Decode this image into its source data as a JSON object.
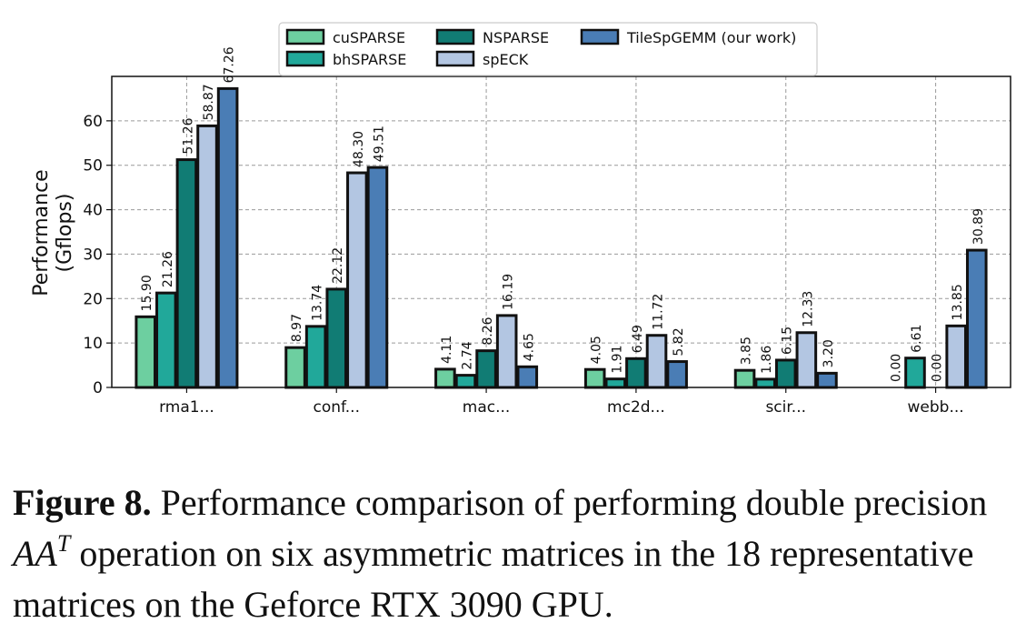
{
  "chart_data": {
    "type": "bar",
    "ylabel": "Performance\n(Gflops)",
    "xlabel": "",
    "ylim": [
      0,
      70
    ],
    "yticks": [
      0,
      10,
      20,
      30,
      40,
      50,
      60
    ],
    "grid": true,
    "legend_position": "top-center",
    "categories": [
      "rma1...",
      "conf...",
      "mac...",
      "mc2d...",
      "scir...",
      "webb..."
    ],
    "series": [
      {
        "name": "cuSPARSE",
        "color": "#6dcfa0",
        "values": [
          15.9,
          8.97,
          4.11,
          4.05,
          3.85,
          0.0
        ],
        "labels": [
          "15.90",
          "8.97",
          "4.11",
          "4.05",
          "3.85",
          "0.00"
        ]
      },
      {
        "name": "bhSPARSE",
        "color": "#21a89a",
        "values": [
          21.26,
          13.74,
          2.74,
          1.91,
          1.86,
          6.61
        ],
        "labels": [
          "21.26",
          "13.74",
          "2.74",
          "1.91",
          "1.86",
          "6.61"
        ]
      },
      {
        "name": "NSPARSE",
        "color": "#117c74",
        "values": [
          51.26,
          22.12,
          8.26,
          6.49,
          6.15,
          0.0
        ],
        "labels": [
          "51.26",
          "22.12",
          "8.26",
          "6.49",
          "6.15",
          "0.00"
        ]
      },
      {
        "name": "spECK",
        "color": "#b3c6e2",
        "values": [
          58.87,
          48.3,
          16.19,
          11.72,
          12.33,
          13.85
        ],
        "labels": [
          "58.87",
          "48.30",
          "16.19",
          "11.72",
          "12.33",
          "13.85"
        ]
      },
      {
        "name": "TileSpGEMM (our work)",
        "color": "#4a7db5",
        "values": [
          67.26,
          49.51,
          4.65,
          5.82,
          3.2,
          30.89
        ],
        "labels": [
          "67.26",
          "49.51",
          "4.65",
          "5.82",
          "3.20",
          "30.89"
        ]
      }
    ]
  },
  "caption": {
    "label": "Figure 8.",
    "text_before": " Performance comparison of performing double precision ",
    "math_base": "AA",
    "math_sup": "T",
    "text_after": " operation on six asymmetric matrices in the 18 representative matrices on the Geforce RTX 3090 GPU."
  }
}
